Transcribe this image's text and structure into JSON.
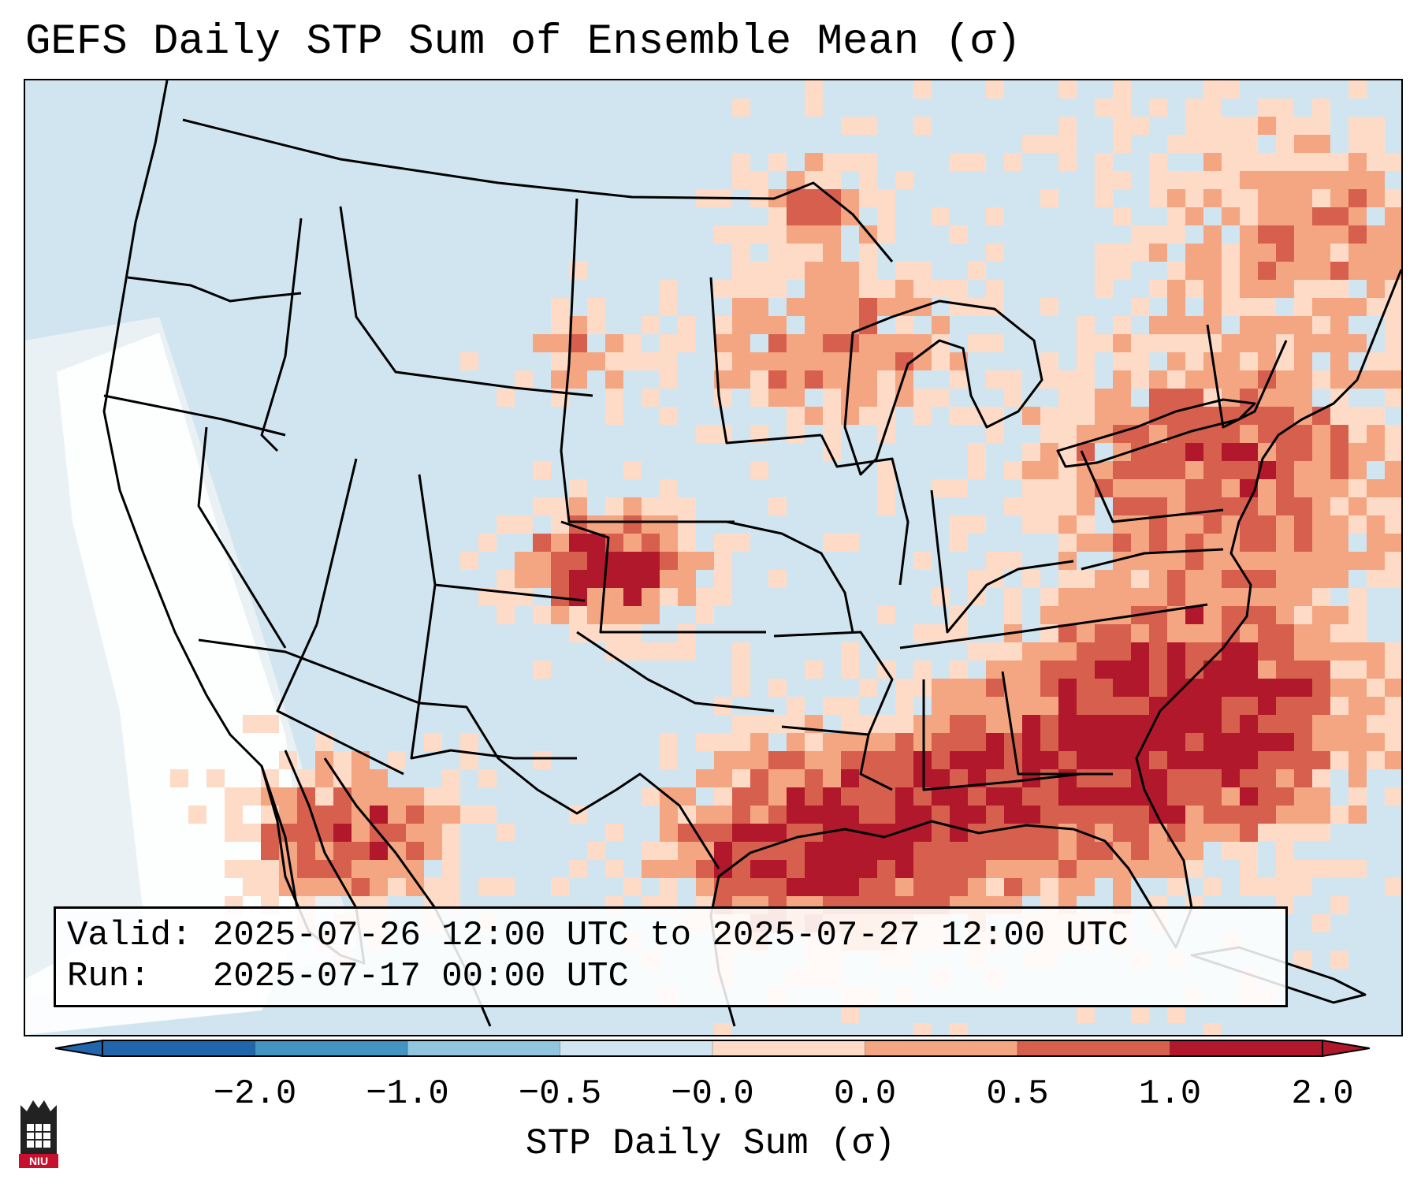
{
  "title": "GEFS Daily STP Sum of Ensemble Mean (σ)",
  "map": {
    "region": "Contiguous United States",
    "boundaries": [
      "state lines",
      "coastlines",
      "national borders"
    ],
    "features": [
      {
        "label": "strong positive anomaly",
        "area": "Oklahoma/Texas panhandle",
        "value_range": "1.0 to 2.0+"
      },
      {
        "label": "strong positive anomaly",
        "area": "western Atlantic off the Southeast coast",
        "value_range": "1.0 to 2.0+"
      },
      {
        "label": "strong positive anomaly",
        "area": "northwest Gulf of Mexico",
        "value_range": "1.0 to 2.0+"
      },
      {
        "label": "positive anomaly",
        "area": "Northeast and Mid-Atlantic",
        "value_range": "0.5 to 2.0"
      },
      {
        "label": "positive anomaly",
        "area": "Upper Midwest / Wisconsin",
        "value_range": "0.5 to 1.0"
      },
      {
        "label": "positive anomaly",
        "area": "northwestern Mexico",
        "value_range": "0.5 to 2.0+"
      },
      {
        "label": "near-neutral",
        "area": "West and Intermountain",
        "value_range": "-0.5 to 0.0"
      }
    ]
  },
  "info": {
    "valid_line": "Valid: 2025-07-26 12:00 UTC to 2025-07-27 12:00 UTC",
    "run_line": "Run:   2025-07-17 00:00 UTC"
  },
  "colorbar": {
    "ticks": [
      "−2.0",
      "−1.0",
      "−0.5",
      "−0.0",
      "0.0",
      "0.5",
      "1.0",
      "2.0"
    ],
    "label": "STP Daily Sum (σ)",
    "colors": [
      "#2166ac",
      "#4393c3",
      "#92c5de",
      "#d1e5f0",
      "#fddbc7",
      "#f4a582",
      "#d6604d",
      "#b2182b"
    ],
    "over_color": "#b2182b",
    "under_color": "#2166ac"
  },
  "logo": {
    "text": "NIU"
  }
}
